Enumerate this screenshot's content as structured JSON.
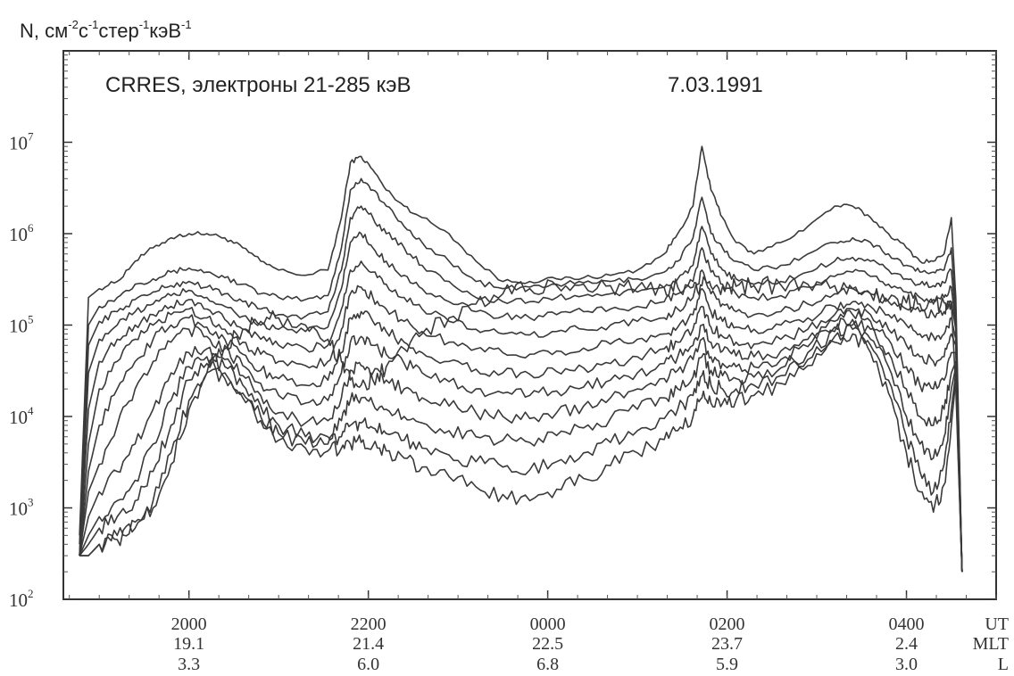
{
  "chart_data": {
    "type": "line",
    "title": "CRRES, электроны 21-285 кэВ",
    "date": "7.03.1991",
    "ylabel": {
      "parts": [
        {
          "t": "N, см",
          "sup": false
        },
        {
          "t": "-2",
          "sup": true
        },
        {
          "t": "с",
          "sup": false
        },
        {
          "t": "-1",
          "sup": true
        },
        {
          "t": "стер",
          "sup": false
        },
        {
          "t": "-1",
          "sup": true
        },
        {
          "t": "кэВ",
          "sup": false
        },
        {
          "t": "-1",
          "sup": true
        }
      ]
    },
    "y_scale": "log",
    "ylim": [
      100,
      100000000
    ],
    "y_ticks": [
      {
        "value": 100,
        "base": "10",
        "exp": "2"
      },
      {
        "value": 1000,
        "base": "10",
        "exp": "3"
      },
      {
        "value": 10000,
        "base": "10",
        "exp": "4"
      },
      {
        "value": 100000,
        "base": "10",
        "exp": "5"
      },
      {
        "value": 1000000,
        "base": "10",
        "exp": "6"
      },
      {
        "value": 10000000,
        "base": "10",
        "exp": "7"
      }
    ],
    "x_axis_rows": [
      "UT",
      "MLT",
      "L"
    ],
    "x_ticks": [
      {
        "UT": "2000",
        "MLT": "19.1",
        "L": "3.3"
      },
      {
        "UT": "2200",
        "MLT": "21.4",
        "L": "6.0"
      },
      {
        "UT": "0000",
        "MLT": "22.5",
        "L": "6.8"
      },
      {
        "UT": "0200",
        "MLT": "23.7",
        "L": "5.9"
      },
      {
        "UT": "0400",
        "MLT": "2.4",
        "L": "3.0"
      }
    ],
    "x_tick_hours": [
      20,
      22,
      24,
      26,
      28
    ],
    "xlim_hours": [
      18.6,
      29.0
    ],
    "grid": false,
    "series_anchor_hours": [
      18.78,
      18.88,
      19.0,
      19.2,
      19.4,
      19.6,
      19.8,
      20.0,
      20.2,
      20.4,
      20.6,
      20.8,
      21.0,
      21.3,
      21.55,
      21.7,
      21.8,
      21.92,
      22.05,
      22.2,
      22.4,
      22.6,
      22.9,
      23.2,
      23.5,
      23.8,
      24.1,
      24.4,
      24.7,
      25.0,
      25.3,
      25.45,
      25.62,
      25.72,
      25.82,
      25.95,
      26.1,
      26.3,
      26.6,
      26.9,
      27.2,
      27.4,
      27.6,
      27.8,
      28.0,
      28.15,
      28.3,
      28.42,
      28.5,
      28.55,
      28.62
    ],
    "series": [
      {
        "values": [
          500,
          200000,
          250000,
          300000,
          500000,
          700000,
          900000,
          1000000,
          1000000,
          900000,
          700000,
          500000,
          400000,
          350000,
          400000,
          1500000,
          6000000,
          7000000,
          5000000,
          3000000,
          2000000,
          1500000,
          1000000,
          500000,
          300000,
          300000,
          320000,
          330000,
          350000,
          400000,
          600000,
          1000000,
          2000000,
          9000000,
          3000000,
          1500000,
          800000,
          600000,
          800000,
          1200000,
          2000000,
          2000000,
          1500000,
          1000000,
          700000,
          500000,
          500000,
          600000,
          1500000,
          200000,
          200
        ]
      },
      {
        "values": [
          400,
          100000,
          160000,
          200000,
          280000,
          320000,
          380000,
          420000,
          380000,
          330000,
          280000,
          220000,
          200000,
          190000,
          210000,
          700000,
          3000000,
          4000000,
          3000000,
          2000000,
          1200000,
          800000,
          500000,
          300000,
          250000,
          260000,
          280000,
          290000,
          300000,
          320000,
          380000,
          500000,
          900000,
          2500000,
          1000000,
          700000,
          500000,
          400000,
          450000,
          600000,
          800000,
          900000,
          800000,
          600000,
          450000,
          380000,
          380000,
          400000,
          700000,
          150000,
          200
        ]
      },
      {
        "values": [
          300,
          60000,
          110000,
          140000,
          190000,
          230000,
          270000,
          300000,
          260000,
          220000,
          180000,
          150000,
          130000,
          125000,
          140000,
          400000,
          1500000,
          2000000,
          1500000,
          1000000,
          700000,
          450000,
          300000,
          200000,
          180000,
          180000,
          200000,
          210000,
          220000,
          230000,
          260000,
          320000,
          450000,
          1200000,
          600000,
          400000,
          320000,
          280000,
          300000,
          380000,
          500000,
          550000,
          500000,
          400000,
          320000,
          280000,
          270000,
          290000,
          400000,
          120000,
          200
        ]
      },
      {
        "values": [
          300,
          30000,
          70000,
          100000,
          140000,
          170000,
          210000,
          240000,
          200000,
          160000,
          125000,
          100000,
          90000,
          85000,
          95000,
          250000,
          800000,
          1000000,
          700000,
          500000,
          350000,
          250000,
          180000,
          140000,
          125000,
          120000,
          130000,
          140000,
          150000,
          160000,
          180000,
          220000,
          300000,
          700000,
          380000,
          280000,
          220000,
          200000,
          210000,
          260000,
          340000,
          380000,
          340000,
          280000,
          230000,
          200000,
          190000,
          200000,
          260000,
          100000,
          200
        ]
      },
      {
        "values": [
          300,
          12000,
          40000,
          70000,
          100000,
          130000,
          160000,
          190000,
          150000,
          115000,
          90000,
          70000,
          60000,
          55000,
          60000,
          150000,
          400000,
          500000,
          380000,
          280000,
          200000,
          150000,
          110000,
          90000,
          80000,
          78000,
          85000,
          90000,
          100000,
          110000,
          120000,
          150000,
          200000,
          400000,
          220000,
          170000,
          140000,
          130000,
          140000,
          170000,
          220000,
          250000,
          220000,
          180000,
          150000,
          140000,
          130000,
          140000,
          180000,
          90000,
          200
        ]
      },
      {
        "values": [
          300,
          5000,
          20000,
          40000,
          70000,
          100000,
          130000,
          150000,
          120000,
          90000,
          65000,
          48000,
          40000,
          36000,
          40000,
          90000,
          220000,
          260000,
          200000,
          150000,
          110000,
          85000,
          65000,
          55000,
          50000,
          48000,
          52000,
          56000,
          62000,
          70000,
          80000,
          95000,
          130000,
          250000,
          140000,
          110000,
          95000,
          90000,
          100000,
          120000,
          160000,
          180000,
          160000,
          130000,
          100000,
          80000,
          75000,
          80000,
          120000,
          70000,
          200
        ]
      },
      {
        "values": [
          300,
          2500,
          8000,
          20000,
          40000,
          70000,
          100000,
          120000,
          95000,
          70000,
          48000,
          32000,
          26000,
          22000,
          25000,
          50000,
          120000,
          140000,
          110000,
          85000,
          65000,
          50000,
          40000,
          33000,
          30000,
          29000,
          31000,
          34000,
          38000,
          45000,
          55000,
          65000,
          90000,
          160000,
          95000,
          75000,
          65000,
          62000,
          70000,
          90000,
          130000,
          150000,
          130000,
          90000,
          60000,
          45000,
          40000,
          45000,
          80000,
          60000,
          200
        ]
      },
      {
        "values": [
          300,
          1500,
          3000,
          8000,
          20000,
          40000,
          65000,
          90000,
          75000,
          55000,
          36000,
          23000,
          17000,
          14000,
          15000,
          30000,
          65000,
          75000,
          60000,
          48000,
          38000,
          30000,
          24000,
          20000,
          18000,
          17000,
          19000,
          21000,
          25000,
          30000,
          38000,
          45000,
          60000,
          100000,
          65000,
          52000,
          46000,
          45000,
          52000,
          70000,
          110000,
          130000,
          110000,
          70000,
          35000,
          22000,
          20000,
          25000,
          50000,
          50000,
          200
        ]
      },
      {
        "values": [
          300,
          800,
          1500,
          2500,
          5000,
          12000,
          30000,
          50000,
          55000,
          42000,
          28000,
          17000,
          11000,
          8500,
          9000,
          16000,
          32000,
          36000,
          30000,
          25000,
          20000,
          16000,
          13000,
          11000,
          10000,
          9500,
          11000,
          13000,
          16000,
          20000,
          26000,
          32000,
          42000,
          70000,
          45000,
          38000,
          35000,
          35000,
          42000,
          58000,
          95000,
          115000,
          90000,
          50000,
          20000,
          10000,
          8000,
          12000,
          30000,
          40000,
          200
        ]
      },
      {
        "values": [
          300,
          500,
          800,
          1200,
          2000,
          5000,
          15000,
          35000,
          45000,
          35000,
          22000,
          13000,
          8000,
          6000,
          6000,
          9000,
          15000,
          16000,
          14000,
          12000,
          10000,
          8500,
          7000,
          6000,
          5500,
          5200,
          6200,
          7500,
          9500,
          12000,
          16000,
          20000,
          27000,
          45000,
          32000,
          28000,
          26000,
          27000,
          34000,
          50000,
          85000,
          100000,
          70000,
          35000,
          10000,
          5000,
          3500,
          6000,
          20000,
          35000,
          200
        ]
      },
      {
        "values": [
          300,
          400,
          600,
          800,
          1200,
          2500,
          8000,
          25000,
          38000,
          30000,
          18000,
          10000,
          6500,
          5000,
          5000,
          6000,
          8000,
          8500,
          7500,
          6500,
          5500,
          4500,
          3800,
          3200,
          2800,
          2600,
          3200,
          4000,
          5200,
          7000,
          9500,
          12000,
          17000,
          28000,
          22000,
          20000,
          20000,
          22000,
          28000,
          42000,
          75000,
          90000,
          60000,
          25000,
          6000,
          2500,
          1500,
          3000,
          12000,
          30000,
          200
        ]
      },
      {
        "values": [
          300,
          300,
          400,
          500,
          700,
          1200,
          4000,
          15000,
          30000,
          26000,
          16000,
          9000,
          5500,
          4500,
          4200,
          4500,
          5000,
          5200,
          4800,
          4200,
          3500,
          2800,
          2200,
          1700,
          1400,
          1200,
          1600,
          2100,
          2900,
          4000,
          5600,
          7000,
          10000,
          16000,
          14000,
          14000,
          15000,
          17000,
          23000,
          36000,
          65000,
          80000,
          50000,
          18000,
          4000,
          1500,
          900,
          1800,
          8000,
          25000,
          200
        ]
      },
      {
        "values": [
          300,
          300,
          400,
          450,
          600,
          1000,
          3000,
          12000,
          30000,
          60000,
          90000,
          110000,
          120000,
          100000,
          70000,
          40000,
          25000,
          22000,
          25000,
          35000,
          55000,
          80000,
          120000,
          170000,
          220000,
          250000,
          270000,
          280000,
          270000,
          260000,
          255000,
          260000,
          260000,
          270000,
          265000,
          265000,
          265000,
          270000,
          275000,
          280000,
          270000,
          250000,
          220000,
          190000,
          175000,
          170000,
          170000,
          175000,
          180000,
          20000,
          200
        ]
      }
    ]
  }
}
